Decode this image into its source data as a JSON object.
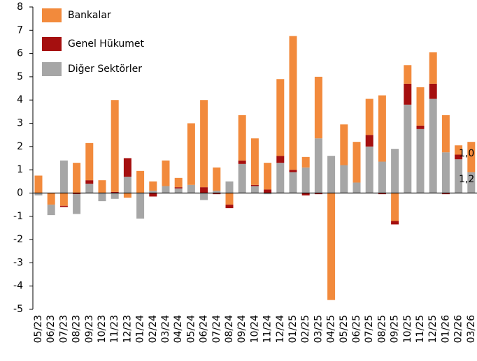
{
  "chart_data": {
    "type": "stacked_bar",
    "categories": [
      "05/23",
      "06/23",
      "07/23",
      "08/23",
      "09/23",
      "10/23",
      "11/23",
      "12/23",
      "01/24",
      "02/24",
      "03/24",
      "04/24",
      "05/24",
      "06/24",
      "07/24",
      "08/24",
      "09/24",
      "10/24",
      "11/24",
      "12/24",
      "01/25",
      "02/25",
      "03/25",
      "04/25",
      "05/25",
      "06/25",
      "07/25",
      "08/25",
      "09/25",
      "10/25",
      "11/25",
      "12/25",
      "01/26",
      "02/26",
      "03/26"
    ],
    "series": [
      {
        "name": "Bankalar",
        "color": "#f28a3c",
        "values": [
          0.75,
          -0.5,
          -0.55,
          1.3,
          1.6,
          0.55,
          3.95,
          -0.2,
          0.95,
          0.4,
          1.1,
          0.4,
          2.65,
          3.75,
          1.0,
          -0.5,
          1.95,
          2.0,
          1.15,
          3.3,
          5.75,
          0.45,
          2.65,
          -4.6,
          1.75,
          1.75,
          1.55,
          2.85,
          -1.2,
          0.8,
          1.65,
          1.35,
          1.6,
          0.4,
          1.3
        ]
      },
      {
        "name": "Genel Hükumet",
        "color": "#a50f0f",
        "values": [
          0,
          0,
          -0.05,
          -0.05,
          0.15,
          0,
          0.05,
          0.8,
          0,
          -0.15,
          0,
          0.05,
          0,
          0.25,
          -0.05,
          -0.15,
          0.15,
          0.05,
          0.15,
          0.3,
          0.1,
          -0.1,
          -0.05,
          0,
          0,
          0,
          0.5,
          -0.05,
          -0.15,
          0.9,
          0.15,
          0.65,
          -0.05,
          0.2,
          0
        ]
      },
      {
        "name": "Diğer Sektörler",
        "color": "#a6a6a6",
        "values": [
          -0.1,
          -0.45,
          1.4,
          -0.85,
          0.4,
          -0.35,
          -0.25,
          0.7,
          -1.1,
          0.1,
          0.3,
          0.2,
          0.35,
          -0.3,
          0.1,
          0.5,
          1.25,
          0.3,
          -0.05,
          1.3,
          0.9,
          1.1,
          2.35,
          1.6,
          1.2,
          0.45,
          2.0,
          1.35,
          1.9,
          3.8,
          2.75,
          4.05,
          1.75,
          1.45,
          0.9
        ]
      }
    ],
    "ylim": [
      -5,
      8
    ],
    "yticks": [
      -5,
      -4,
      -3,
      -2,
      -1,
      0,
      1,
      2,
      3,
      4,
      5,
      6,
      7,
      8
    ],
    "legend": "top-left",
    "annotations": [
      "1,0",
      "1,2"
    ]
  }
}
